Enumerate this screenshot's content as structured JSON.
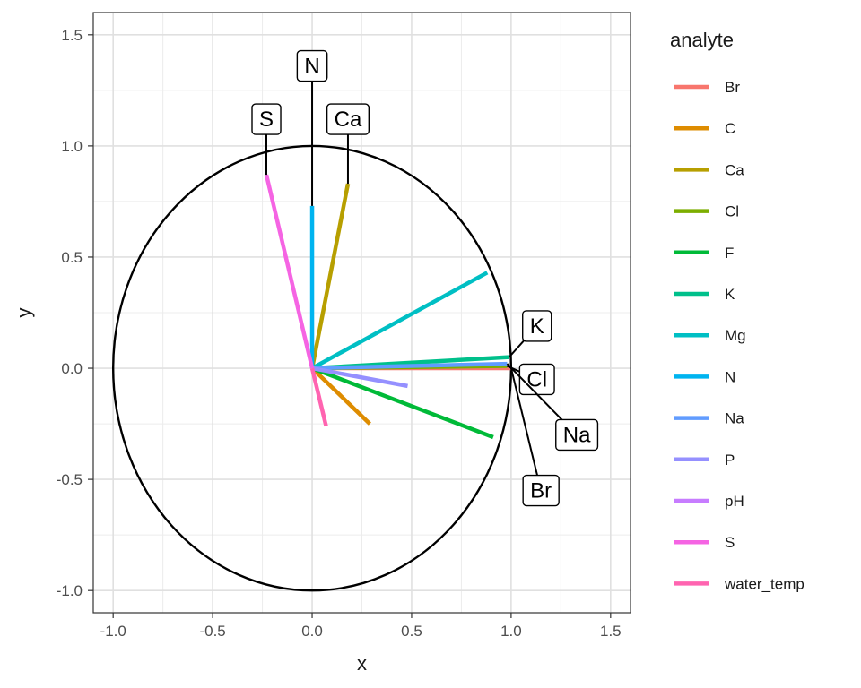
{
  "chart_data": {
    "type": "line",
    "xlabel": "x",
    "ylabel": "y",
    "xlim": [
      -1.1,
      1.6
    ],
    "ylim": [
      -1.1,
      1.6
    ],
    "x_ticks": [
      -1.0,
      -0.5,
      0.0,
      0.5,
      1.0,
      1.5
    ],
    "y_ticks": [
      -1.0,
      -0.5,
      0.0,
      0.5,
      1.0,
      1.5
    ],
    "x_tick_labels": [
      "-1.0",
      "-0.5",
      "0.0",
      "0.5",
      "1.0",
      "1.5"
    ],
    "y_tick_labels": [
      "-1.0",
      "-0.5",
      "0.0",
      "0.5",
      "1.0",
      "1.5"
    ],
    "grid": true,
    "unit_circle": true,
    "legend_title": "analyte",
    "legend_position": "right",
    "series": [
      {
        "name": "Br",
        "color": "#F8766D",
        "x": [
          0,
          1.0
        ],
        "y": [
          0,
          0.0
        ]
      },
      {
        "name": "C",
        "color": "#DE8C00",
        "x": [
          0,
          0.29
        ],
        "y": [
          0,
          -0.25
        ]
      },
      {
        "name": "Ca",
        "color": "#B79F00",
        "x": [
          0,
          0.18
        ],
        "y": [
          0,
          0.83
        ]
      },
      {
        "name": "Cl",
        "color": "#7CAE00",
        "x": [
          0,
          0.98
        ],
        "y": [
          0,
          0.01
        ]
      },
      {
        "name": "F",
        "color": "#00BA38",
        "x": [
          0,
          0.91
        ],
        "y": [
          0,
          -0.31
        ]
      },
      {
        "name": "K",
        "color": "#00C08B",
        "x": [
          0,
          0.99
        ],
        "y": [
          0,
          0.05
        ]
      },
      {
        "name": "Mg",
        "color": "#00BFC4",
        "x": [
          0,
          0.88
        ],
        "y": [
          0,
          0.43
        ]
      },
      {
        "name": "N",
        "color": "#00B4F0",
        "x": [
          0,
          0.0
        ],
        "y": [
          0,
          0.73
        ]
      },
      {
        "name": "Na",
        "color": "#619CFF",
        "x": [
          0,
          0.98
        ],
        "y": [
          0,
          0.02
        ]
      },
      {
        "name": "P",
        "color": "#9590FF",
        "x": [
          0,
          0.48
        ],
        "y": [
          0,
          -0.08
        ]
      },
      {
        "name": "pH",
        "color": "#C77CFF",
        "x": [
          0,
          0.0
        ],
        "y": [
          0,
          0.0
        ]
      },
      {
        "name": "S",
        "color": "#F564E3",
        "x": [
          0,
          -0.23
        ],
        "y": [
          0,
          0.87
        ]
      },
      {
        "name": "water_temp",
        "color": "#FF64B0",
        "x": [
          0,
          0.07
        ],
        "y": [
          0,
          -0.26
        ]
      }
    ],
    "annotations": [
      {
        "text": "N",
        "anchor": [
          0.0,
          0.73
        ],
        "label_at": [
          0.0,
          1.36
        ]
      },
      {
        "text": "S",
        "anchor": [
          -0.23,
          0.87
        ],
        "label_at": [
          -0.23,
          1.12
        ]
      },
      {
        "text": "Ca",
        "anchor": [
          0.18,
          0.83
        ],
        "label_at": [
          0.18,
          1.12
        ]
      },
      {
        "text": "K",
        "anchor": [
          0.99,
          0.05
        ],
        "label_at": [
          1.13,
          0.19
        ]
      },
      {
        "text": "Cl",
        "anchor": [
          0.98,
          0.01
        ],
        "label_at": [
          1.13,
          -0.05
        ]
      },
      {
        "text": "Na",
        "anchor": [
          0.98,
          0.02
        ],
        "label_at": [
          1.33,
          -0.3
        ]
      },
      {
        "text": "Br",
        "anchor": [
          1.0,
          0.0
        ],
        "label_at": [
          1.15,
          -0.55
        ]
      }
    ]
  }
}
